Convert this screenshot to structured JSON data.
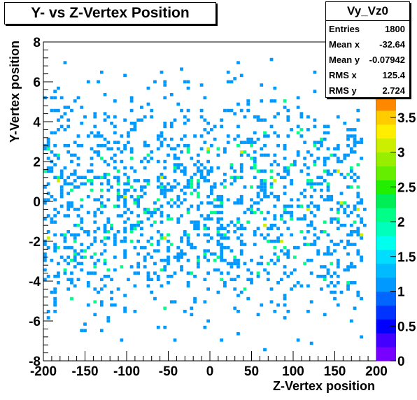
{
  "chart_data": {
    "type": "heatmap",
    "title": "Y- vs Z-Vertex Position",
    "xlabel": "Z-Vertex position",
    "ylabel": "Y-Vertex position",
    "xlim": [
      -200,
      200
    ],
    "ylim": [
      -8,
      8
    ],
    "x_ticks": [
      "-200",
      "-150",
      "-100",
      "-50",
      "0",
      "50",
      "100",
      "150",
      "200"
    ],
    "y_ticks": [
      "-8",
      "-6",
      "-4",
      "-2",
      "0",
      "2",
      "4",
      "6",
      "8"
    ],
    "z_ticks": [
      "0",
      "0.5",
      "1",
      "1.5",
      "2",
      "2.5",
      "3",
      "3.5"
    ],
    "zlim": [
      0,
      3.8
    ],
    "palette": [
      "#7700ff",
      "#4400ff",
      "#0000ff",
      "#0033ff",
      "#0066ff",
      "#0099ff",
      "#00bbff",
      "#00ddff",
      "#00ffee",
      "#00ffbb",
      "#00ff88",
      "#00ee55",
      "#22ee00",
      "#66ee00",
      "#99ee00",
      "#ccee00",
      "#ffee00",
      "#ffcc00",
      "#ff8800"
    ],
    "bin_count": {
      "x": 100,
      "y": 100
    },
    "legend_position": "right",
    "stats": {
      "name": "Vy_Vz0",
      "rows": [
        {
          "label": "Entries",
          "value": "1800"
        },
        {
          "label": "Mean x",
          "value": "-32.64"
        },
        {
          "label": "Mean y",
          "value": "-0.07942"
        },
        {
          "label": "RMS x",
          "value": "125.4"
        },
        {
          "label": "RMS y",
          "value": "2.724"
        }
      ]
    }
  }
}
